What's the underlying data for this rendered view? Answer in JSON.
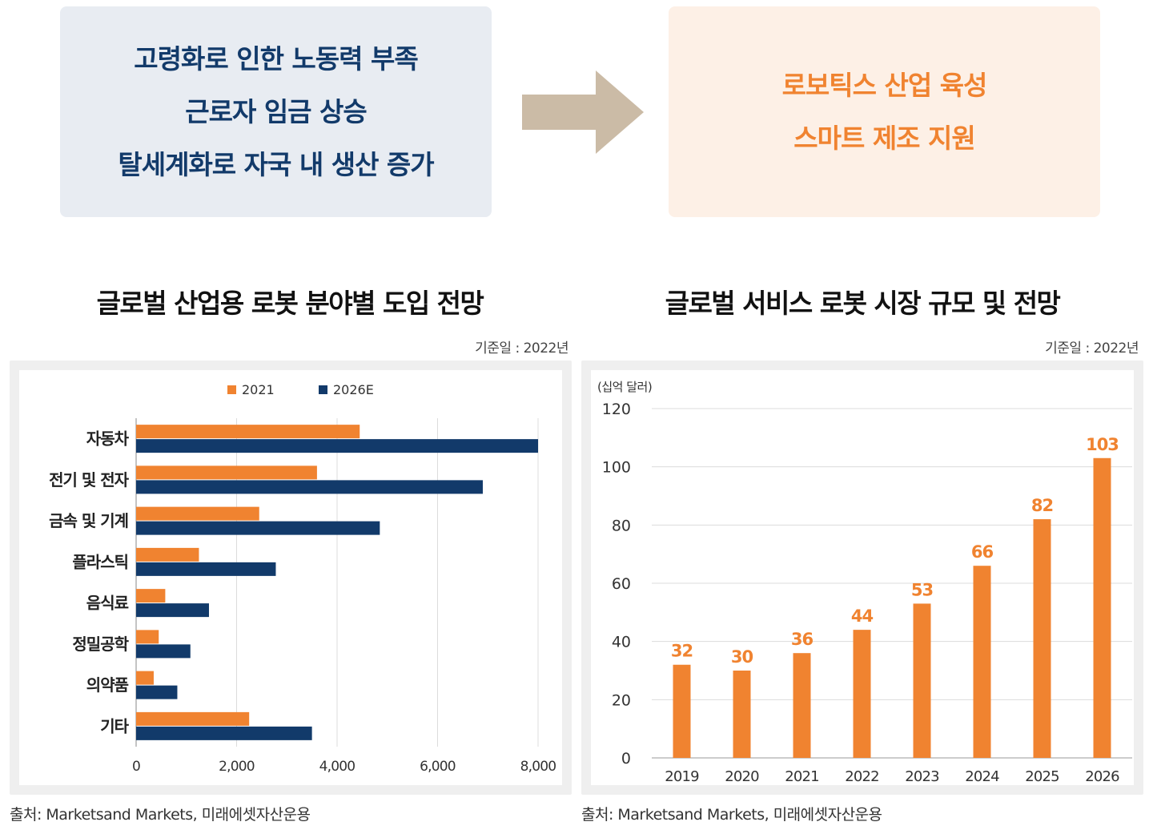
{
  "cause_lines": [
    "고령화로 인한 노동력 부족",
    "근로자 임금 상승",
    "탈세계화로 자국 내 생산 증가"
  ],
  "result_lines": [
    "로보틱스 산업 육성",
    "스마트 제조 지원"
  ],
  "colors": {
    "orange": "#f08330",
    "navy": "#123a6a",
    "arrow": "#cbbba6"
  },
  "source_text": "출처: Marketsand Markets, 미래에셋자산운용",
  "chart_data": [
    {
      "type": "bar",
      "orientation": "horizontal",
      "title": "글로벌 산업용 로봇 분야별 도입 전망",
      "base_date": "기준일 : 2022년",
      "categories": [
        "자동차",
        "전기 및 전자",
        "금속 및 기계",
        "플라스틱",
        "음식료",
        "정밀공학",
        "의약품",
        "기타"
      ],
      "series": [
        {
          "name": "2021",
          "color": "#f08330",
          "values": [
            4450,
            3600,
            2450,
            1250,
            580,
            450,
            350,
            2250
          ]
        },
        {
          "name": "2026E",
          "color": "#123a6a",
          "values": [
            8000,
            6900,
            4850,
            2780,
            1450,
            1080,
            820,
            3500
          ]
        }
      ],
      "xlim": [
        0,
        8000
      ],
      "xticks": [
        0,
        2000,
        4000,
        6000,
        8000
      ],
      "xtick_labels": [
        "0",
        "2,000",
        "4,000",
        "6,000",
        "8,000"
      ],
      "legend_position": "top",
      "grid": "vertical",
      "source": "출처: Marketsand Markets, 미래에셋자산운용"
    },
    {
      "type": "bar",
      "orientation": "vertical",
      "title": "글로벌 서비스 로봇 시장 규모 및 전망",
      "base_date": "기준일 : 2022년",
      "unit_label": "(십억 달러)",
      "categories": [
        "2019",
        "2020",
        "2021",
        "2022",
        "2023",
        "2024",
        "2025",
        "2026"
      ],
      "values": [
        32,
        30,
        36,
        44,
        53,
        66,
        82,
        103
      ],
      "value_labels": [
        "32",
        "30",
        "36",
        "44",
        "53",
        "66",
        "82",
        "103"
      ],
      "color": "#f08330",
      "ylim": [
        0,
        120
      ],
      "yticks": [
        0,
        20,
        40,
        60,
        80,
        100,
        120
      ],
      "ytick_labels": [
        "0",
        "20",
        "40",
        "60",
        "80",
        "100",
        "120"
      ],
      "grid": "horizontal",
      "source": "출처: Marketsand Markets, 미래에셋자산운용"
    }
  ]
}
